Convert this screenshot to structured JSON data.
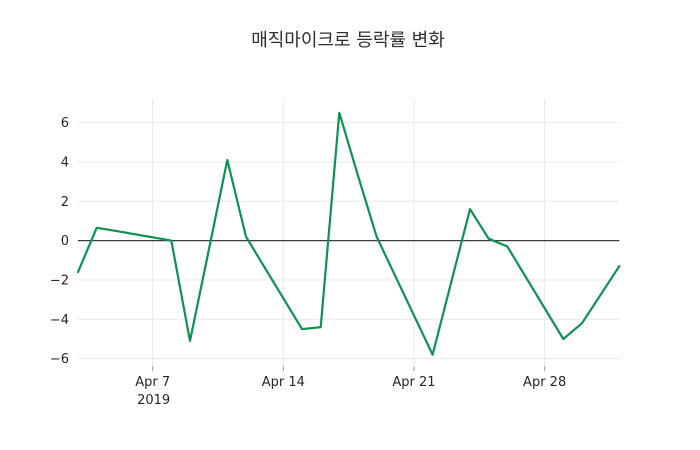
{
  "title": "매직마이크로 등락률 변화",
  "colors": {
    "background": "#ffffff",
    "line": "#0e9152",
    "zero_line": "#3c3c3c",
    "grid": "#e9e9e9",
    "tick_mark": "#9a9a9a",
    "tick_text": "#262626",
    "title_text": "#2e2e2e"
  },
  "chart_data": {
    "type": "line",
    "title": "매직마이크로 등락률 변화",
    "xlabel": "",
    "ylabel": "",
    "x_unit": "date, April 2019 (day offset; 32 = May 2)",
    "x": [
      3,
      4,
      5,
      8,
      9,
      10,
      11,
      12,
      15,
      16,
      17,
      18,
      19,
      22,
      23,
      24,
      25,
      26,
      29,
      30,
      32
    ],
    "x_dates": [
      "Apr 3",
      "Apr 4",
      "Apr 5",
      "Apr 8",
      "Apr 9",
      "Apr 10",
      "Apr 11",
      "Apr 12",
      "Apr 15",
      "Apr 16",
      "Apr 17",
      "Apr 18",
      "Apr 19",
      "Apr 22",
      "Apr 23",
      "Apr 24",
      "Apr 25",
      "Apr 26",
      "Apr 29",
      "Apr 30",
      "May 2"
    ],
    "values": [
      -1.6,
      0.65,
      0.5,
      0.0,
      -5.1,
      -0.5,
      4.1,
      0.2,
      -4.5,
      -4.4,
      6.5,
      3.3,
      0.2,
      -5.8,
      -2.1,
      1.6,
      0.1,
      -0.3,
      -5.0,
      -4.2,
      -1.3
    ],
    "series_color": "#0e9152",
    "xticks": [
      {
        "day": 7,
        "label": "Apr 7",
        "sublabel": "2019"
      },
      {
        "day": 14,
        "label": "Apr 14",
        "sublabel": ""
      },
      {
        "day": 21,
        "label": "Apr 21",
        "sublabel": ""
      },
      {
        "day": 28,
        "label": "Apr 28",
        "sublabel": ""
      }
    ],
    "yticks": [
      -6,
      -4,
      -2,
      0,
      2,
      4,
      6
    ],
    "xlim_days": [
      3,
      32
    ],
    "ylim": [
      -6.4,
      7.2
    ],
    "grid": true,
    "zero_line": true,
    "legend": false
  }
}
